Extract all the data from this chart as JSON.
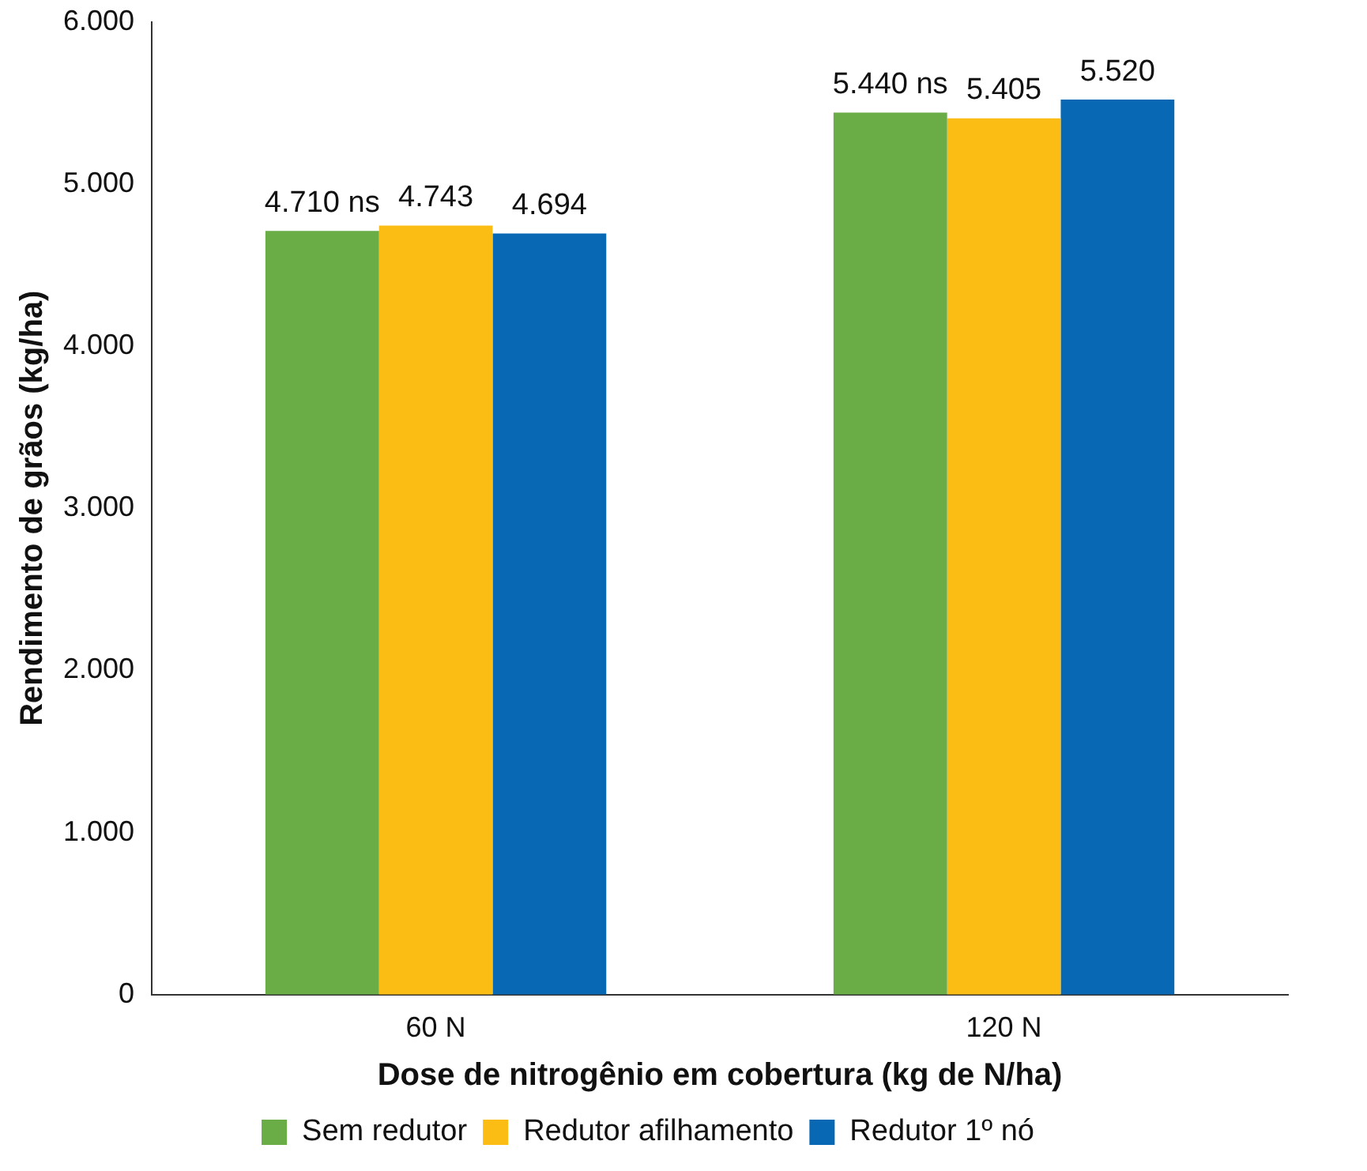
{
  "chart_data": {
    "type": "bar",
    "xlabel": "Dose de nitrogênio em cobertura (kg de N/ha)",
    "ylabel": "Rendimento de grãos (kg/ha)",
    "categories": [
      "60 N",
      "120 N"
    ],
    "series": [
      {
        "name": "Sem redutor",
        "color": "#6aac46",
        "values": [
          4710,
          5440
        ],
        "value_labels": [
          "4.710 ns",
          "5.440 ns"
        ]
      },
      {
        "name": "Redutor afilhamento",
        "color": "#fbbc13",
        "values": [
          4743,
          5405
        ],
        "value_labels": [
          "4.743",
          "5.405"
        ]
      },
      {
        "name": "Redutor 1º nó",
        "color": "#0868b4",
        "values": [
          4694,
          5520
        ],
        "value_labels": [
          "4.694",
          "5.520"
        ]
      }
    ],
    "ylim": [
      0,
      6000
    ],
    "yticks": [
      0,
      {
        "value": 1000,
        "label": "1.000"
      },
      {
        "value": 2000,
        "label": "2.000"
      },
      {
        "value": 3000,
        "label": "3.000"
      },
      {
        "value": 4000,
        "label": "4.000"
      },
      {
        "value": 5000,
        "label": "5.000"
      },
      {
        "value": 6000,
        "label": "6.000"
      }
    ],
    "grid": false,
    "legend": "bottom"
  }
}
